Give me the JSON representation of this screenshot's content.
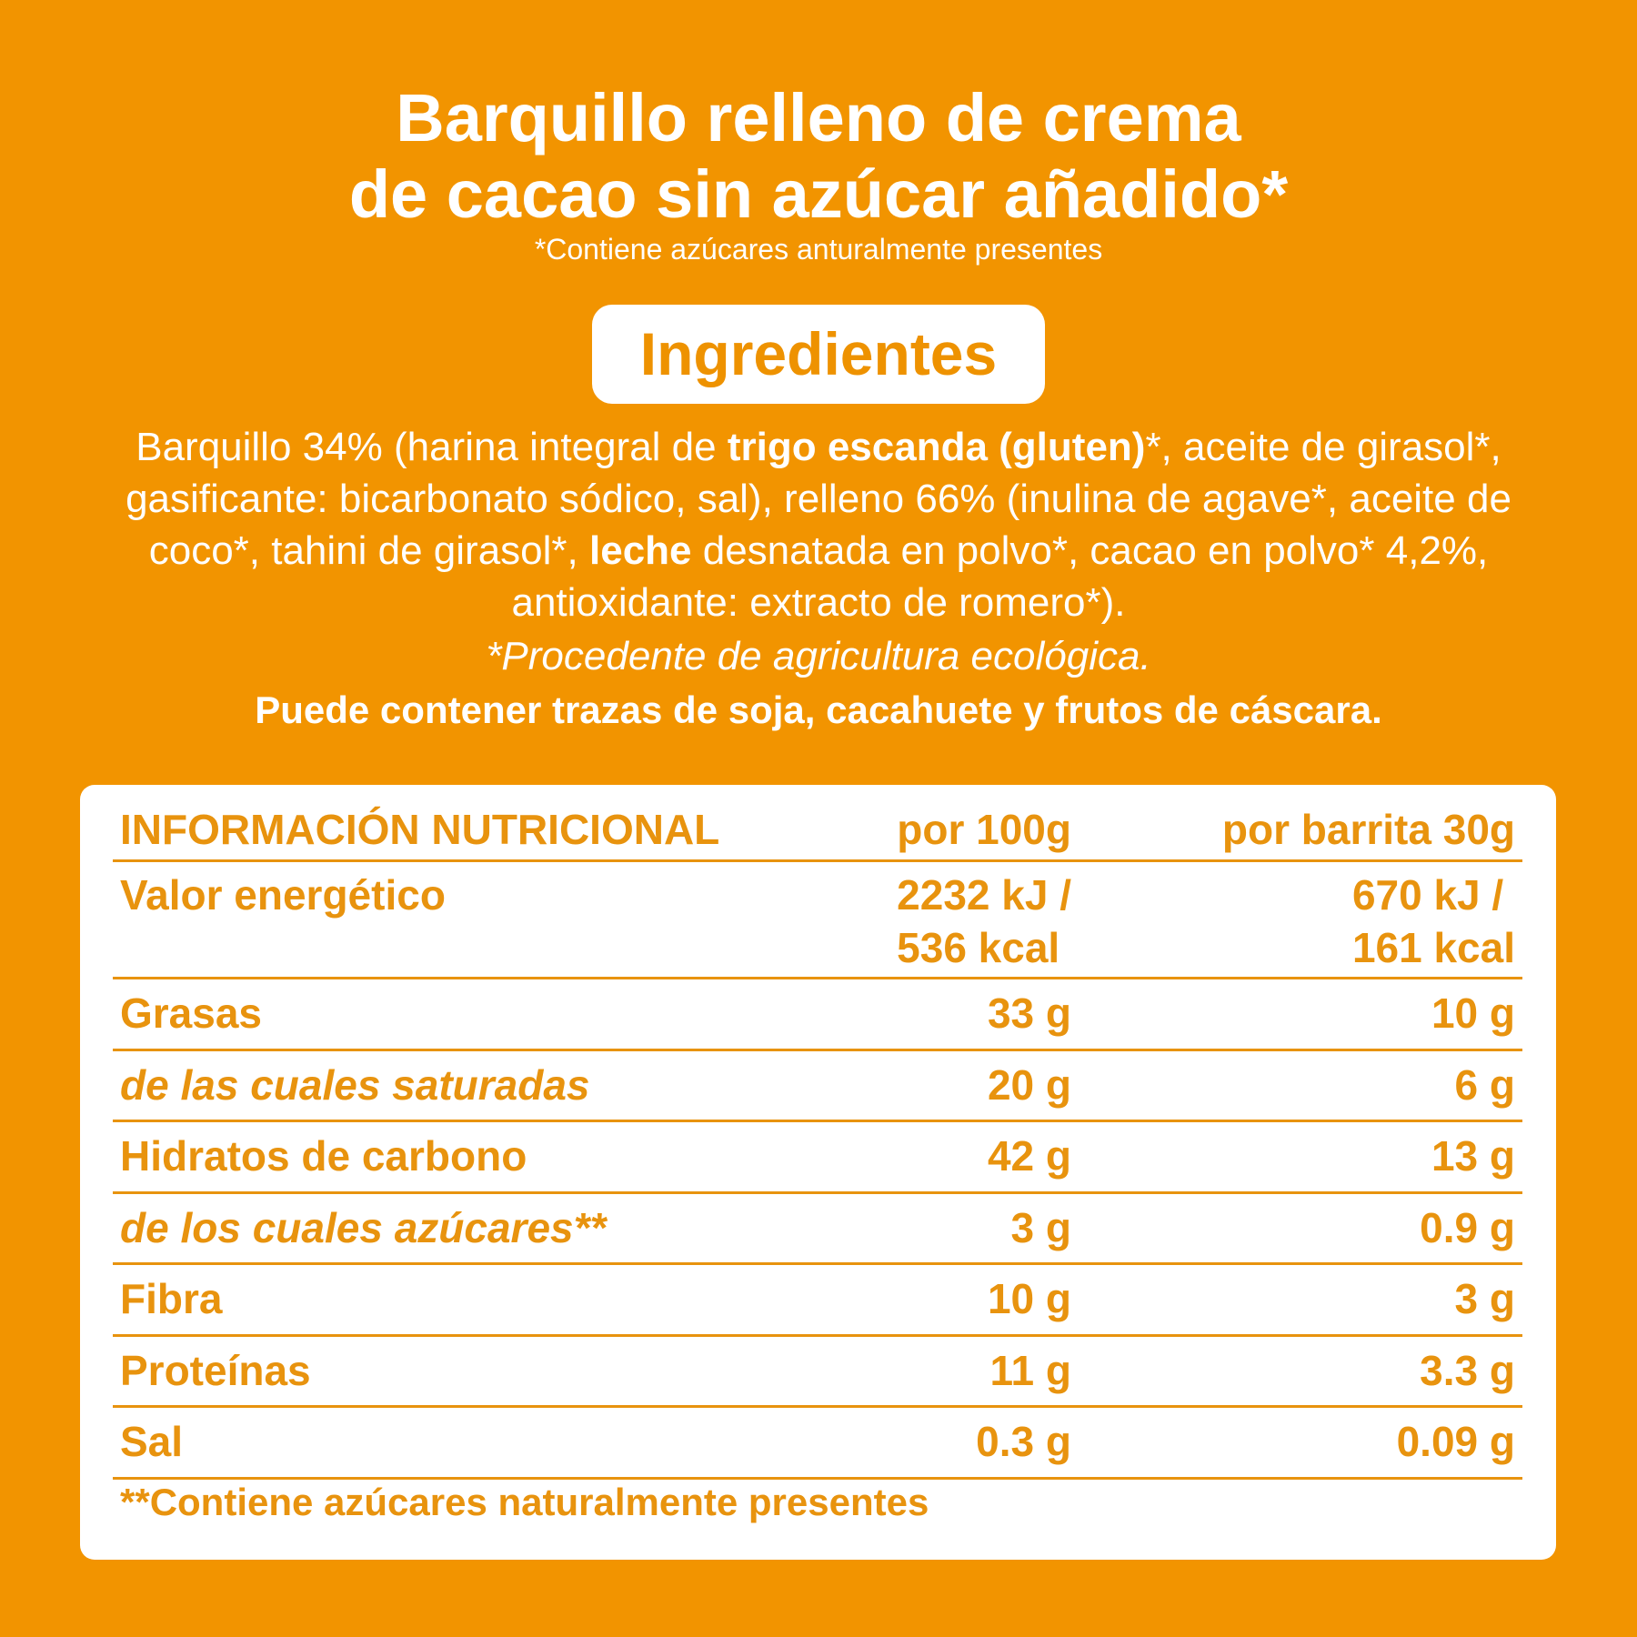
{
  "header": {
    "title_lines": [
      "Barquillo relleno de crema",
      "de cacao sin azúcar añadido*"
    ],
    "note": "*Contiene azúcares anturalmente presentes"
  },
  "ingredients": {
    "heading": "Ingredientes",
    "paragraph": [
      {
        "text": "Barquillo 34% (harina integral de ",
        "style": "normal"
      },
      {
        "text": "trigo escanda (gluten)",
        "style": "bold"
      },
      {
        "text": "*, aceite de girasol*, gasificante: bicarbonato sódico, sal), relleno 66% (inulina de agave*, aceite de coco*, tahini de girasol*, ",
        "style": "normal"
      },
      {
        "text": "leche",
        "style": "bold"
      },
      {
        "text": " desnatada en polvo*, cacao en polvo* 4,2%, antioxidante: extracto de romero*).",
        "style": "normal"
      }
    ],
    "origin_note": "*Procedente de agricultura ecológica.",
    "allergen_note": "Puede contener trazas de soja, cacahuete y frutos de cáscara."
  },
  "table": {
    "header": [
      "INFORMACIÓN NUTRICIONAL",
      "por 100g",
      "por barrita 30g"
    ],
    "rows": [
      {
        "label": "Valor energético",
        "style": "normal",
        "per100": [
          "2232 kJ /",
          "536 kcal"
        ],
        "perbar": [
          "670 kJ /",
          "161 kcal"
        ]
      },
      {
        "label": "Grasas",
        "style": "normal",
        "per100": [
          "33 g"
        ],
        "perbar": [
          "10 g"
        ]
      },
      {
        "label": "de las cuales saturadas",
        "style": "italic",
        "per100": [
          "20 g"
        ],
        "perbar": [
          "6 g"
        ]
      },
      {
        "label": "Hidratos de carbono",
        "style": "normal",
        "per100": [
          "42 g"
        ],
        "perbar": [
          "13 g"
        ]
      },
      {
        "label": "de los cuales azúcares**",
        "style": "italic",
        "per100": [
          "3 g"
        ],
        "perbar": [
          "0.9 g"
        ]
      },
      {
        "label": "Fibra",
        "style": "normal",
        "per100": [
          "10 g"
        ],
        "perbar": [
          "3 g"
        ]
      },
      {
        "label": "Proteínas",
        "style": "normal",
        "per100": [
          "11 g"
        ],
        "perbar": [
          "3.3 g"
        ]
      },
      {
        "label": "Sal",
        "style": "normal",
        "per100": [
          "0.3 g"
        ],
        "perbar": [
          "0.09 g"
        ]
      }
    ],
    "footnote": "**Contiene azúcares naturalmente presentes"
  }
}
